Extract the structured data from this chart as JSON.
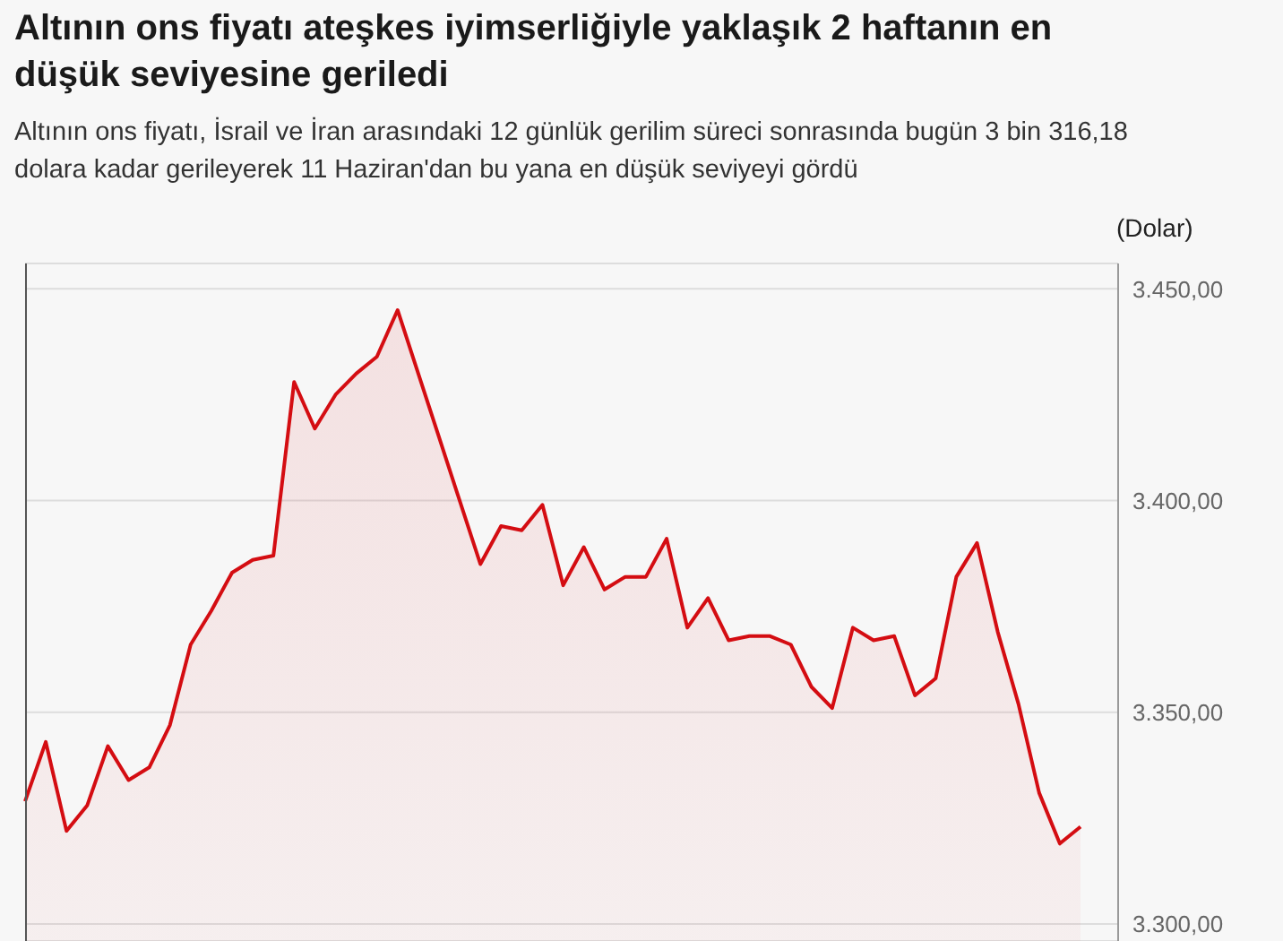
{
  "chart_data": {
    "type": "area",
    "title": "Altının ons fiyatı ateşkes iyimserliğiyle yaklaşık 2 haftanın en düşük seviyesine geriledi",
    "subtitle": "Altının ons fiyatı, İsrail ve İran arasındaki 12 günlük gerilim süreci sonrasında bugün 3 bin 316,18 dolara kadar gerileyerek 11 Haziran'dan bu yana en düşük seviyeyi gördü",
    "ylabel": "(Dolar)",
    "categories": [
      null,
      null,
      null,
      null,
      null,
      null,
      null,
      null,
      null,
      null,
      null,
      null,
      null,
      null,
      null,
      null,
      null,
      null,
      null,
      null,
      null,
      null,
      null,
      null,
      null,
      null,
      null,
      null,
      null,
      null,
      null,
      null,
      null,
      null,
      null,
      null,
      null,
      null,
      null,
      null,
      null,
      null,
      null,
      null,
      null,
      null,
      null,
      null,
      null,
      null,
      null,
      null
    ],
    "series": [
      {
        "color": "#d40d12",
        "values": [
          3329,
          3343,
          3322,
          3328,
          3342,
          3334,
          3337,
          3347,
          3366,
          3374,
          3383,
          3386,
          3387,
          3428,
          3417,
          3425,
          3430,
          3434,
          3445,
          3430,
          3415,
          3400,
          3385,
          3394,
          3393,
          3399,
          3380,
          3389,
          3379,
          3382,
          3382,
          3391,
          3370,
          3377,
          3367,
          3368,
          3368,
          3366,
          3356,
          3351,
          3370,
          3367,
          3368,
          3354,
          3358,
          3382,
          3390,
          3369,
          3352,
          3331,
          3319,
          3323
        ]
      }
    ],
    "ylim": [
      3296,
      3456
    ],
    "yticks": [
      {
        "value": 3300,
        "label": "3.300,00"
      },
      {
        "value": 3350,
        "label": "3.350,00"
      },
      {
        "value": 3400,
        "label": "3.400,00"
      },
      {
        "value": 3450,
        "label": "3.450,00"
      }
    ],
    "grid": "y",
    "legend": false,
    "marker": "none",
    "line_style": "solid"
  }
}
